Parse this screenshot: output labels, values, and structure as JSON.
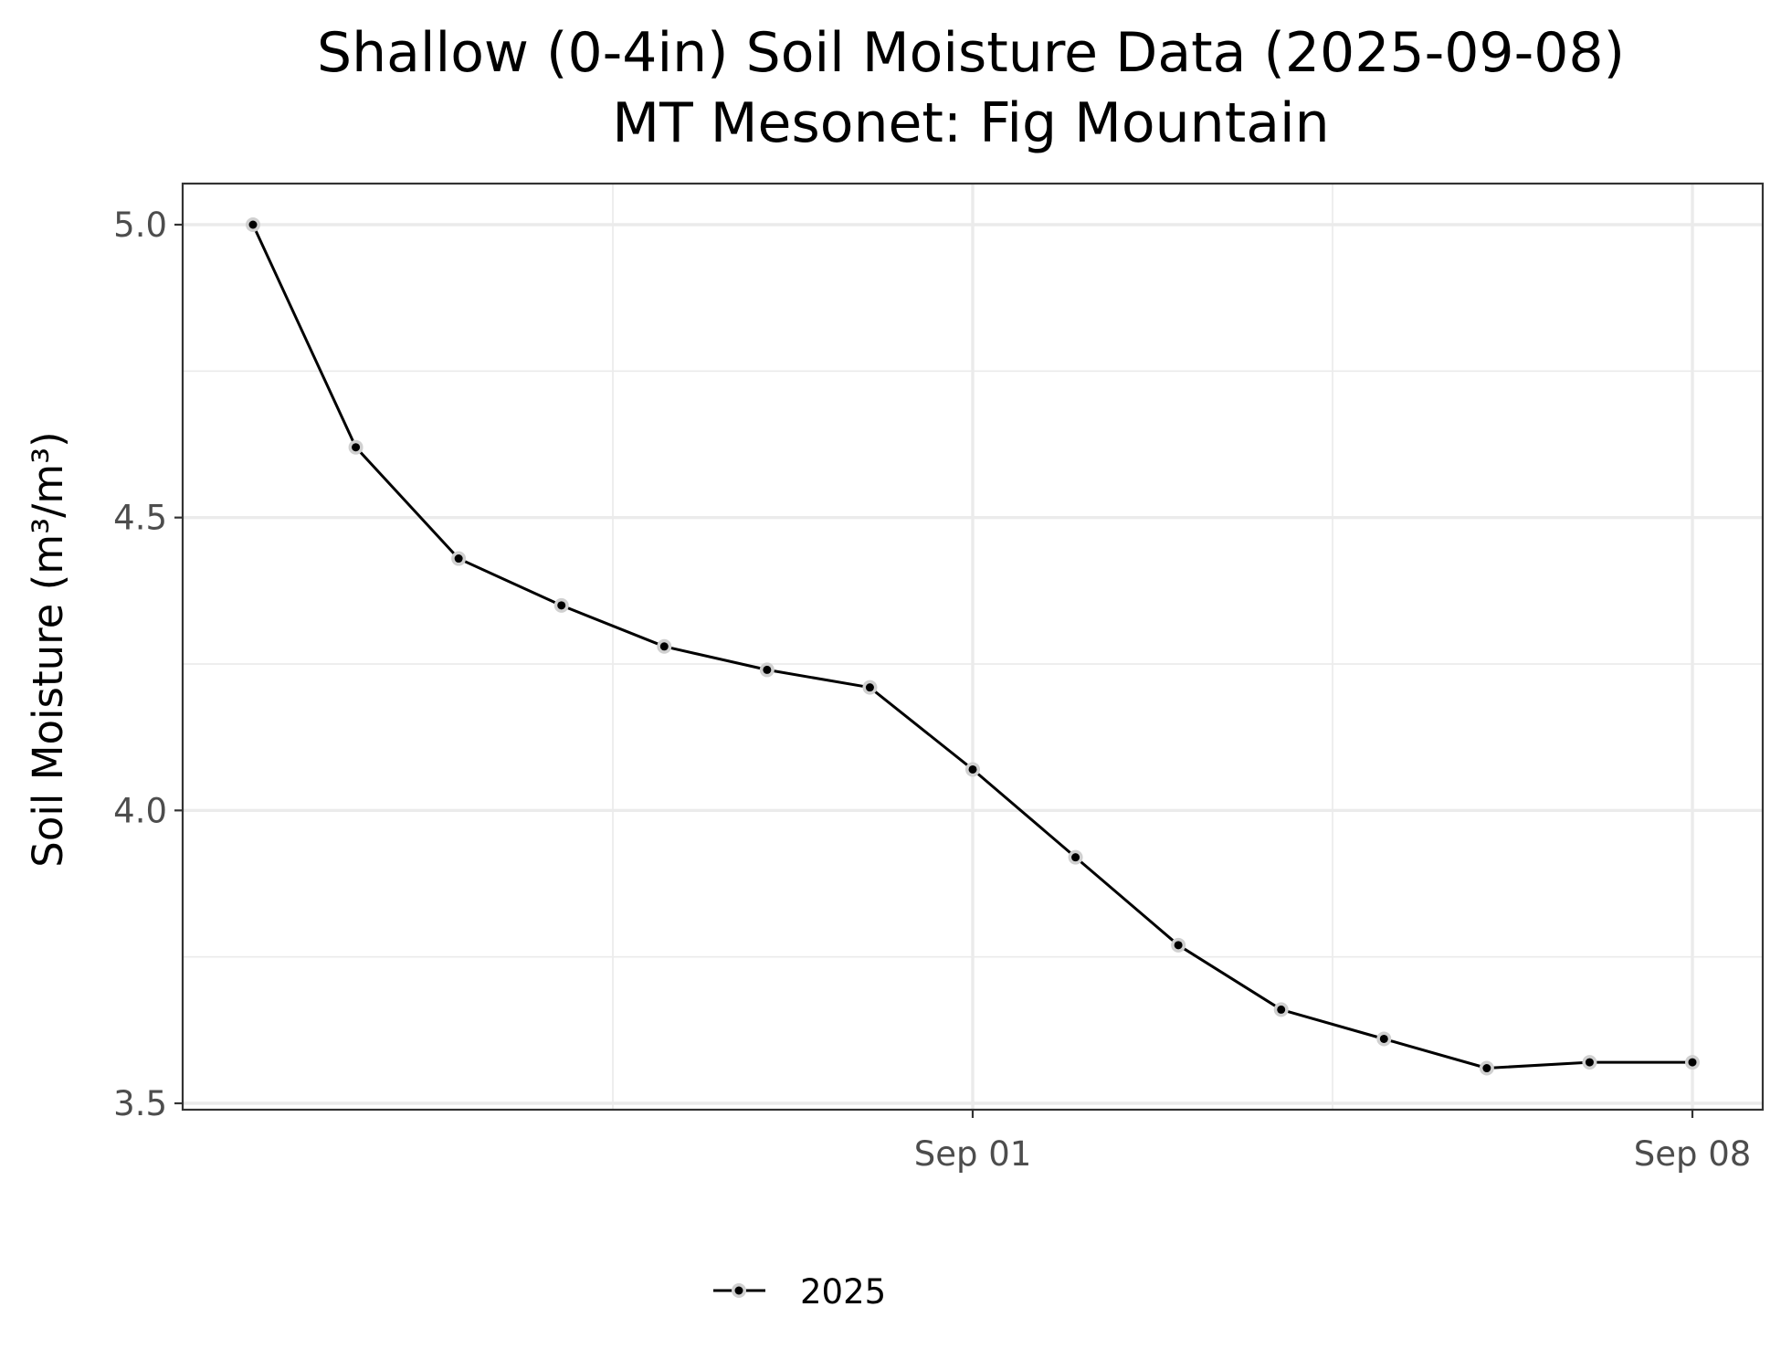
{
  "chart_data": {
    "type": "line",
    "title": "Shallow (0-4in) Soil Moisture Data (2025-09-08)",
    "subtitle": "MT Mesonet: Fig Mountain",
    "xlabel": "",
    "ylabel": "Soil Moisture (m³/m³)",
    "x_type": "date",
    "xlim": [
      "2025-08-24",
      "2025-09-09"
    ],
    "ylim": [
      3.5,
      5.0
    ],
    "y_ticks": [
      3.5,
      4.0,
      4.5,
      5.0
    ],
    "y_tick_labels": [
      "3.5",
      "4.0",
      "4.5",
      "5.0"
    ],
    "x_ticks": [
      "2025-09-01",
      "2025-09-08"
    ],
    "x_tick_labels": [
      "Sep 01",
      "Sep 08"
    ],
    "grid": true,
    "legend_position": "bottom",
    "series": [
      {
        "name": "2025",
        "color": "#000000",
        "x": [
          "2025-08-25",
          "2025-08-26",
          "2025-08-27",
          "2025-08-28",
          "2025-08-29",
          "2025-08-30",
          "2025-08-31",
          "2025-09-01",
          "2025-09-02",
          "2025-09-03",
          "2025-09-04",
          "2025-09-05",
          "2025-09-06",
          "2025-09-07",
          "2025-09-08"
        ],
        "y": [
          5.0,
          4.62,
          4.43,
          4.35,
          4.28,
          4.24,
          4.21,
          4.07,
          3.92,
          3.77,
          3.66,
          3.61,
          3.56,
          3.57,
          3.57
        ]
      }
    ]
  }
}
